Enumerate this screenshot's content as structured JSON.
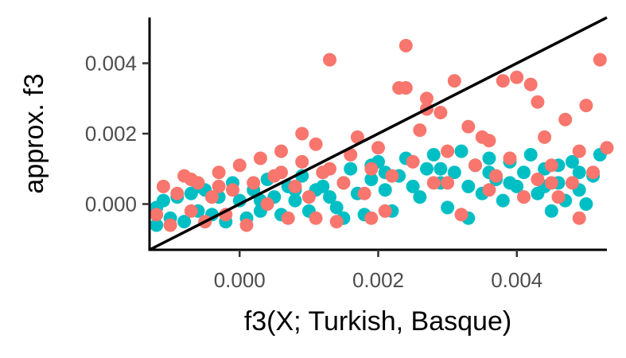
{
  "chart_data": {
    "type": "scatter",
    "title": "",
    "xlabel": "f3(X; Turkish, Basque)",
    "ylabel": "approx. f3",
    "xlim": [
      -0.0013,
      0.0053
    ],
    "ylim": [
      -0.0013,
      0.0053
    ],
    "x_ticks": [
      {
        "value": 0.0,
        "label": "0.000"
      },
      {
        "value": 0.002,
        "label": "0.002"
      },
      {
        "value": 0.004,
        "label": "0.004"
      }
    ],
    "y_ticks": [
      {
        "value": 0.0,
        "label": "0.000"
      },
      {
        "value": 0.002,
        "label": "0.002"
      },
      {
        "value": 0.004,
        "label": "0.004"
      }
    ],
    "grid": false,
    "legend": "none",
    "reference_line": {
      "type": "identity",
      "slope": 1,
      "intercept": 0,
      "color": "#000000"
    },
    "series": [
      {
        "color": "#00BFC4",
        "points": [
          [
            -0.0012,
            -0.0006
          ],
          [
            -0.0011,
            0.0001
          ],
          [
            -0.001,
            -0.0004
          ],
          [
            -0.0009,
            0.0002
          ],
          [
            -0.0008,
            -0.0005
          ],
          [
            -0.0007,
            0.0003
          ],
          [
            -0.0006,
            -0.0002
          ],
          [
            -0.0005,
            0.0004
          ],
          [
            -0.0004,
            -0.0003
          ],
          [
            -0.0003,
            0.0002
          ],
          [
            -0.0002,
            -0.0005
          ],
          [
            -0.0001,
            0.0006
          ],
          [
            0.0,
            0.0001
          ],
          [
            0.0001,
            -0.0004
          ],
          [
            0.0002,
            0.0004
          ],
          [
            0.0003,
            -0.0002
          ],
          [
            0.0004,
            0.0007
          ],
          [
            0.0005,
            0.0002
          ],
          [
            0.0006,
            -0.0003
          ],
          [
            0.0007,
            0.0005
          ],
          [
            0.0008,
            0.0001
          ],
          [
            0.0009,
            0.0008
          ],
          [
            0.001,
            -0.0002
          ],
          [
            0.0011,
            0.0004
          ],
          [
            0.0012,
            0.0009
          ],
          [
            0.0013,
            0.0002
          ],
          [
            0.0014,
            -0.0001
          ],
          [
            0.0015,
            0.0006
          ],
          [
            0.0016,
            0.001
          ],
          [
            0.0017,
            0.0003
          ],
          [
            0.0018,
            -0.0003
          ],
          [
            0.0019,
            0.0007
          ],
          [
            0.002,
            0.0012
          ],
          [
            0.0021,
            0.0004
          ],
          [
            0.0022,
            -0.0002
          ],
          [
            0.0023,
            0.0008
          ],
          [
            0.0024,
            0.0013
          ],
          [
            0.0025,
            0.0005
          ],
          [
            0.0026,
            0.0002
          ],
          [
            0.0027,
            0.001
          ],
          [
            0.0028,
            0.0014
          ],
          [
            0.0029,
            0.0006
          ],
          [
            0.003,
            -0.0001
          ],
          [
            0.0031,
            0.0009
          ],
          [
            0.0032,
            0.0015
          ],
          [
            0.0033,
            0.0005
          ],
          [
            0.0034,
            0.0011
          ],
          [
            0.0035,
            0.0003
          ],
          [
            0.0036,
            0.0013
          ],
          [
            0.0037,
            0.0007
          ],
          [
            0.0038,
            0.0001
          ],
          [
            0.0039,
            0.0012
          ],
          [
            0.004,
            0.0005
          ],
          [
            0.0041,
            0.0009
          ],
          [
            0.0042,
            0.0014
          ],
          [
            0.0043,
            0.0003
          ],
          [
            0.0044,
            0.001
          ],
          [
            0.0045,
            -0.0002
          ],
          [
            0.0046,
            0.0006
          ],
          [
            0.0047,
            0.0001
          ],
          [
            0.0048,
            0.0012
          ],
          [
            0.0049,
            0.0004
          ],
          [
            0.005,
            0.0
          ],
          [
            0.0051,
            0.0008
          ],
          [
            0.0052,
            0.0014
          ],
          [
            -0.0012,
            -0.0001
          ],
          [
            0.0003,
            0.0001
          ],
          [
            0.0012,
            0.0005
          ],
          [
            0.0021,
            0.0009
          ],
          [
            0.0036,
            0.0009
          ],
          [
            0.0044,
            0.0005
          ],
          [
            0.0049,
            0.0009
          ],
          [
            -0.0006,
            0.0005
          ],
          [
            0.0008,
            0.0004
          ],
          [
            0.0019,
            0.0011
          ],
          [
            0.0029,
            0.001
          ],
          [
            0.0039,
            0.0006
          ],
          [
            0.0046,
            0.0011
          ],
          [
            0.0015,
            -0.0004
          ],
          [
            0.0033,
            -0.0004
          ]
        ]
      },
      {
        "color": "#F8766D",
        "points": [
          [
            -0.0012,
            -0.0003
          ],
          [
            -0.0011,
            0.0005
          ],
          [
            -0.001,
            -0.0006
          ],
          [
            -0.0009,
            0.0003
          ],
          [
            -0.0008,
            0.0008
          ],
          [
            -0.0007,
            -0.0002
          ],
          [
            -0.0006,
            0.0006
          ],
          [
            -0.0005,
            -0.0005
          ],
          [
            -0.0004,
            0.0002
          ],
          [
            -0.0003,
            0.0009
          ],
          [
            -0.0002,
            -0.0003
          ],
          [
            -0.0001,
            0.0004
          ],
          [
            0.0,
            0.0011
          ],
          [
            0.0001,
            -0.0006
          ],
          [
            0.0002,
            0.0006
          ],
          [
            0.0003,
            0.0013
          ],
          [
            0.0004,
            0.0
          ],
          [
            0.0005,
            0.0008
          ],
          [
            0.0006,
            0.0015
          ],
          [
            0.0007,
            -0.0004
          ],
          [
            0.0008,
            0.0005
          ],
          [
            0.0009,
            0.0012
          ],
          [
            0.001,
            0.0002
          ],
          [
            0.0011,
            0.0017
          ],
          [
            0.0012,
            0.0009
          ],
          [
            0.0013,
            0.0041
          ],
          [
            0.0014,
            -0.0005
          ],
          [
            0.0015,
            0.0006
          ],
          [
            0.0016,
            0.0014
          ],
          [
            0.0017,
            0.0019
          ],
          [
            0.0018,
            0.0003
          ],
          [
            0.0019,
            0.001
          ],
          [
            0.002,
            0.0016
          ],
          [
            0.0021,
            -0.0002
          ],
          [
            0.0022,
            0.0008
          ],
          [
            0.0023,
            0.0033
          ],
          [
            0.0024,
            0.0045
          ],
          [
            0.0025,
            0.0012
          ],
          [
            0.0026,
            0.0021
          ],
          [
            0.0027,
            0.003
          ],
          [
            0.0028,
            0.0006
          ],
          [
            0.0029,
            0.0026
          ],
          [
            0.003,
            0.0015
          ],
          [
            0.0031,
            0.0035
          ],
          [
            0.0032,
            -0.0003
          ],
          [
            0.0033,
            0.0022
          ],
          [
            0.0034,
            0.0011
          ],
          [
            0.0035,
            0.0019
          ],
          [
            0.0036,
            0.0004
          ],
          [
            0.0037,
            0.0008
          ],
          [
            0.0038,
            0.0035
          ],
          [
            0.0039,
            0.0013
          ],
          [
            0.004,
            0.0036
          ],
          [
            0.0041,
            0.0002
          ],
          [
            0.0042,
            0.0034
          ],
          [
            0.0043,
            0.0007
          ],
          [
            0.0044,
            0.0019
          ],
          [
            0.0045,
            0.0011
          ],
          [
            0.0046,
            0.0002
          ],
          [
            0.0047,
            0.0024
          ],
          [
            0.0048,
            0.0006
          ],
          [
            0.0049,
            0.0015
          ],
          [
            0.005,
            0.0028
          ],
          [
            0.0051,
            0.0009
          ],
          [
            0.0052,
            0.0041
          ],
          [
            0.0053,
            0.0016
          ],
          [
            -0.0007,
            0.0007
          ],
          [
            0.0009,
            0.002
          ],
          [
            0.0013,
            0.001
          ],
          [
            0.0024,
            0.0033
          ],
          [
            0.0027,
            0.0027
          ],
          [
            0.0036,
            0.0018
          ],
          [
            0.0043,
            0.0029
          ],
          [
            0.0049,
            -0.0004
          ],
          [
            0.0019,
            -0.0004
          ],
          [
            0.0011,
            -0.0004
          ],
          [
            0.0006,
            0.0009
          ],
          [
            -0.0003,
            0.0005
          ],
          [
            0.003,
            0.0006
          ],
          [
            0.0045,
            0.0006
          ]
        ]
      }
    ]
  }
}
